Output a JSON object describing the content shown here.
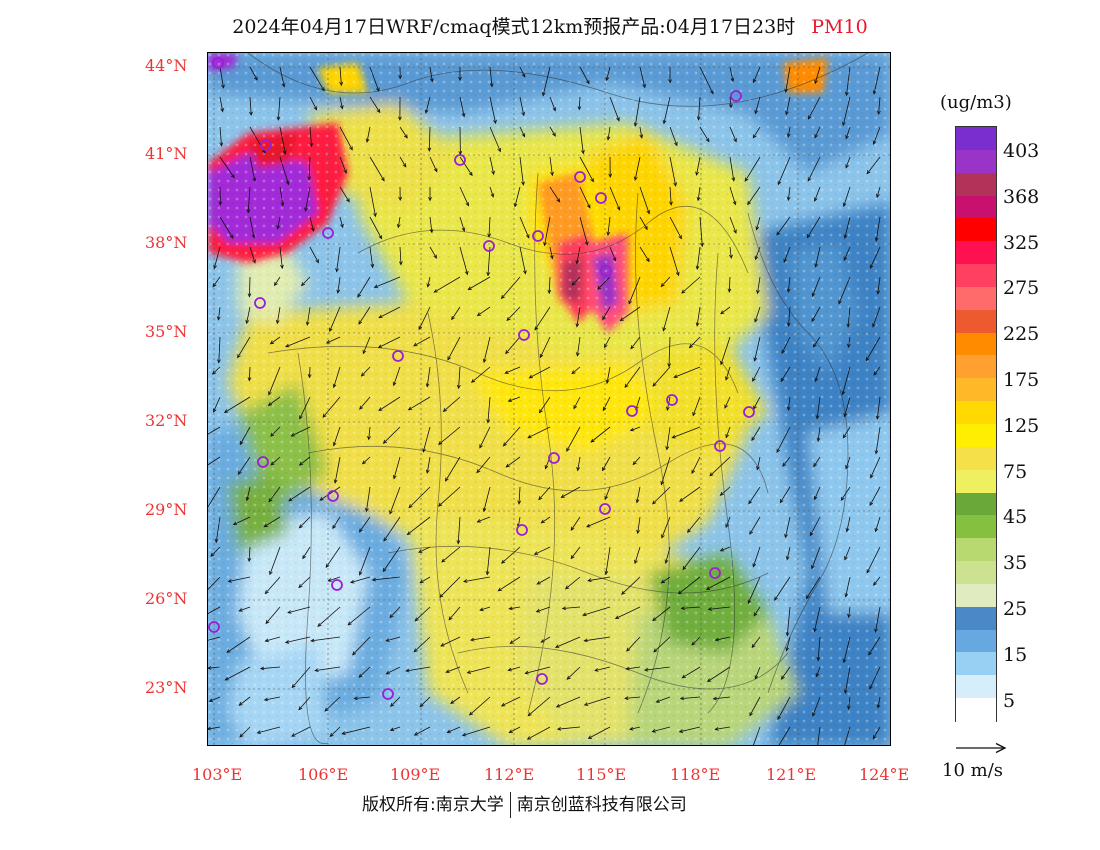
{
  "title": {
    "main": "2024年04月17日WRF/cmaq模式12km预报产品:04月17日23时",
    "species": "PM10"
  },
  "lat_labels": [
    "44°N",
    "41°N",
    "38°N",
    "35°N",
    "32°N",
    "29°N",
    "26°N",
    "23°N"
  ],
  "lon_labels": [
    "103°E",
    "106°E",
    "109°E",
    "112°E",
    "115°E",
    "118°E",
    "121°E",
    "124°E"
  ],
  "colorbar": {
    "units": "(ug/m3)",
    "labels": [
      "403",
      "368",
      "325",
      "275",
      "225",
      "175",
      "125",
      "75",
      "45",
      "35",
      "25",
      "15",
      "5"
    ],
    "colors_top_to_bottom": [
      "#7a2ed0",
      "#9a33c8",
      "#b3325a",
      "#c8106e",
      "#ff0000",
      "#ff1050",
      "#ff4060",
      "#ff6a6a",
      "#ee5a30",
      "#ff8c00",
      "#ffa030",
      "#ffb828",
      "#ffd900",
      "#ffee00",
      "#f5e04a",
      "#eef060",
      "#6aa83a",
      "#86c040",
      "#b8d870",
      "#cde290",
      "#e0ecc0",
      "#4a88c8",
      "#68a8e0",
      "#98d0f4",
      "#d6eefa",
      "#ffffff"
    ]
  },
  "wind_reference": "10 m/s",
  "copyright": {
    "left": "版权所有:南京大学",
    "right": "南京创蓝科技有限公司"
  }
}
